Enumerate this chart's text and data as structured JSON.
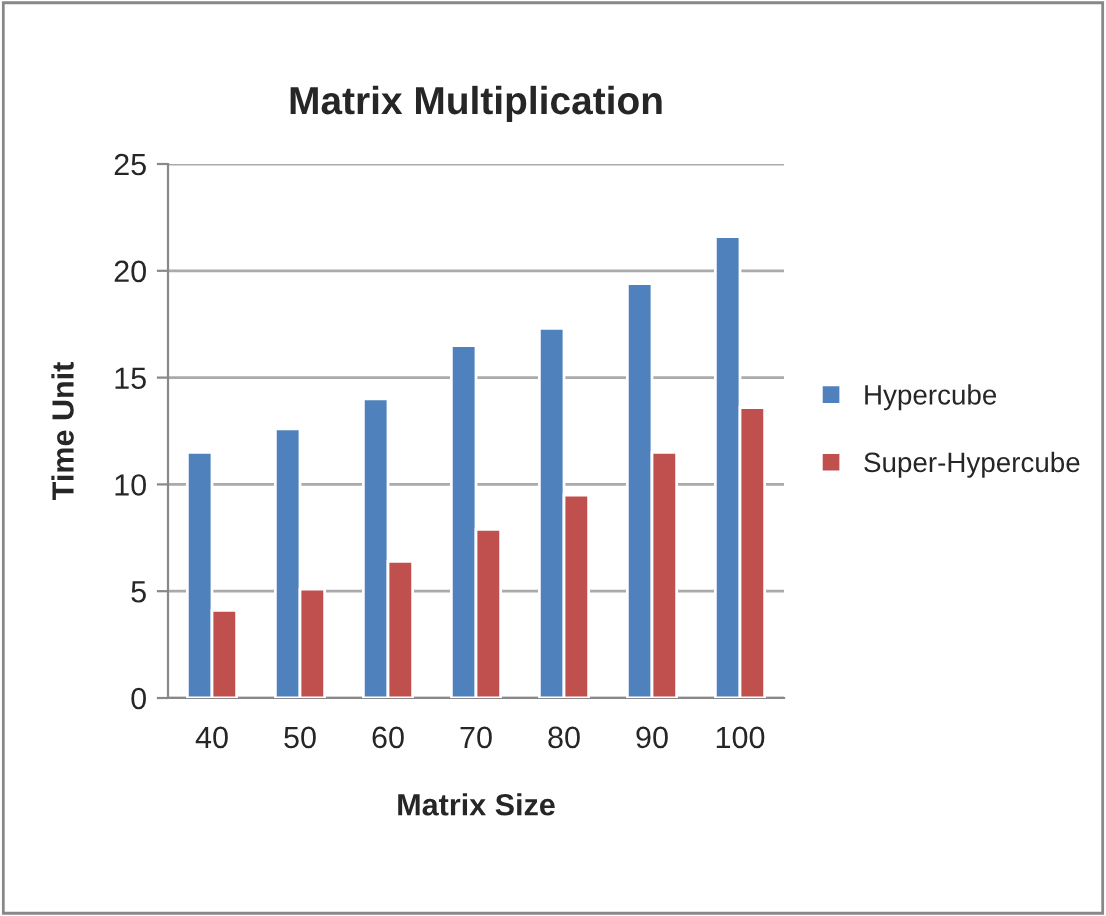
{
  "chart_data": {
    "type": "bar",
    "title": "Matrix Multiplication",
    "xlabel": "Matrix Size",
    "ylabel": "Time Unit",
    "categories": [
      "40",
      "50",
      "60",
      "70",
      "80",
      "90",
      "100"
    ],
    "series": [
      {
        "name": "Hypercube",
        "color": "#4f81bd",
        "values": [
          11.5,
          12.6,
          14.0,
          16.5,
          17.3,
          19.4,
          21.6
        ]
      },
      {
        "name": "Super-Hypercube",
        "color": "#c0504d",
        "values": [
          4.1,
          5.1,
          6.4,
          7.9,
          9.5,
          11.5,
          13.6
        ]
      }
    ],
    "ylim": [
      0,
      25
    ],
    "yticks": [
      0,
      5,
      10,
      15,
      20,
      25
    ],
    "grid": "y",
    "legend": "right"
  }
}
